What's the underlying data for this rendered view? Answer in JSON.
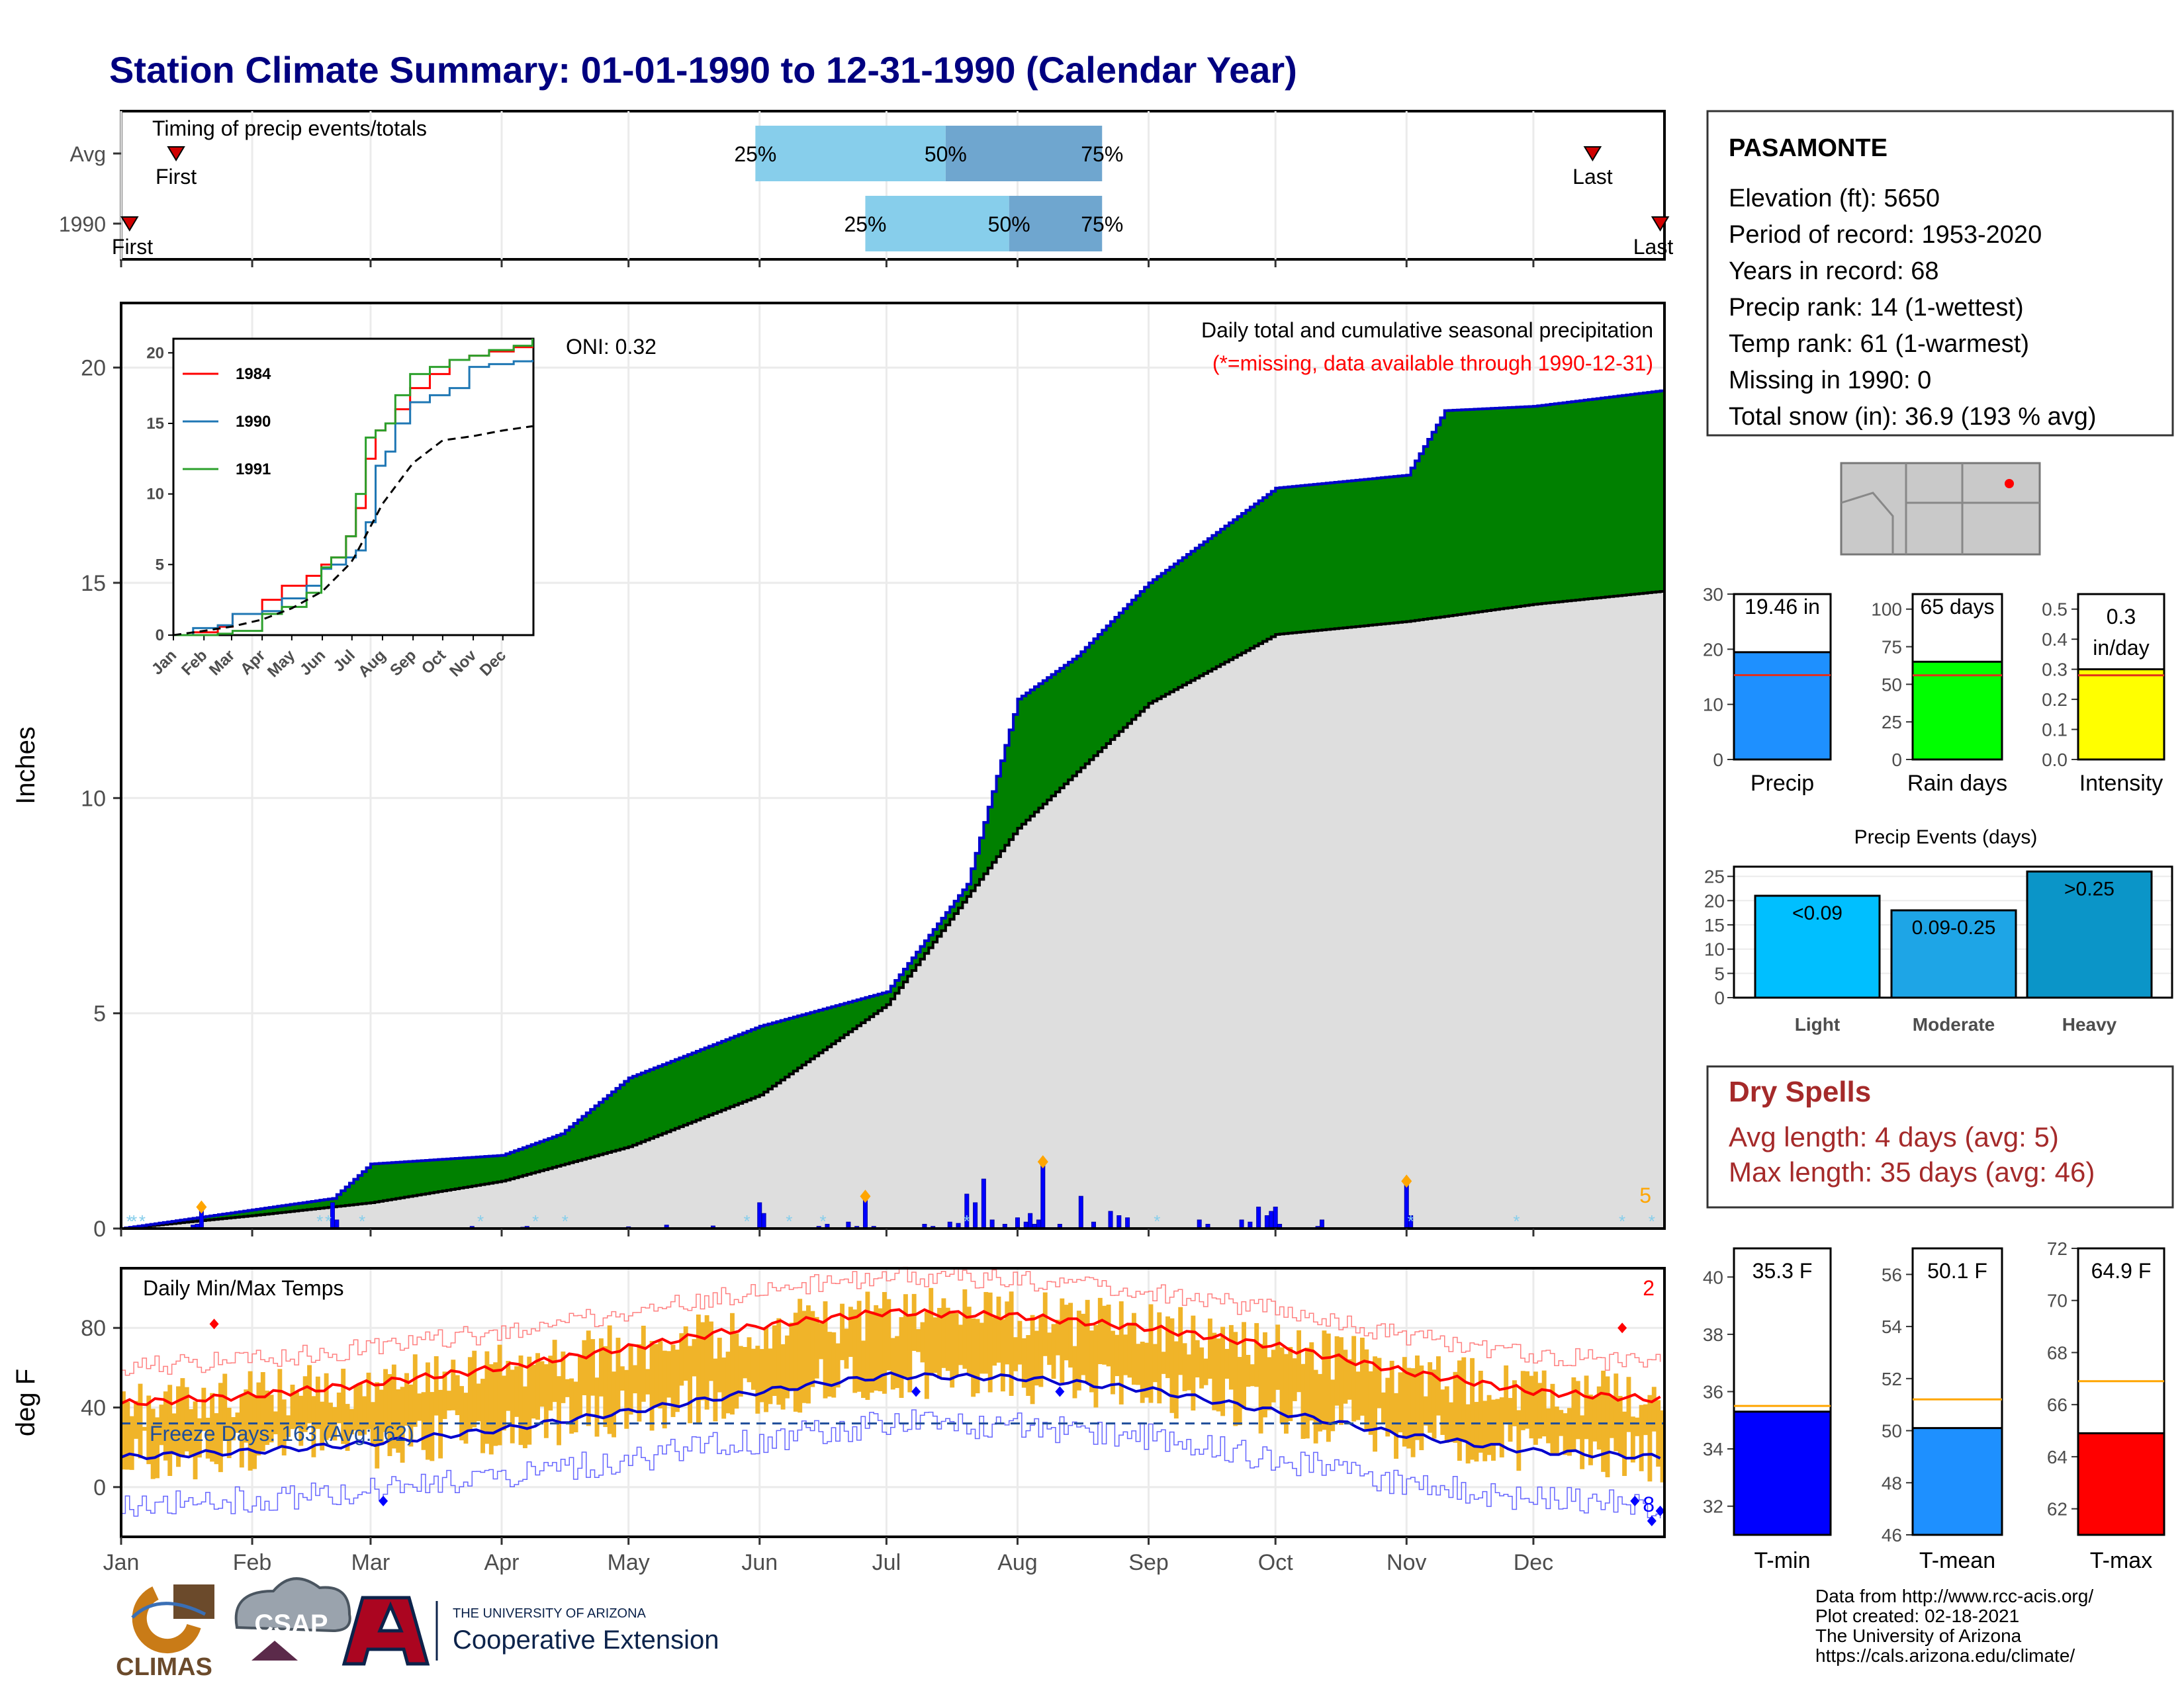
{
  "title": "Station Climate Summary: 01-01-1990 to 12-31-1990 (Calendar Year)",
  "months": [
    "Jan",
    "Feb",
    "Mar",
    "Apr",
    "May",
    "Jun",
    "Jul",
    "Aug",
    "Sep",
    "Oct",
    "Nov",
    "Dec"
  ],
  "timing": {
    "heading": "Timing of precip events/totals",
    "rows": [
      {
        "label": "Avg",
        "first_label": "First",
        "last_label": "Last",
        "first_day": 13,
        "last_day": 348,
        "p25_day": 150,
        "p50_day": 195,
        "p75_day": 232,
        "p25_label": "25%",
        "p50_label": "50%",
        "p75_label": "75%"
      },
      {
        "label": "1990",
        "first_label": "First",
        "last_label": "Last",
        "first_day": 2,
        "last_day": 364,
        "p25_day": 176,
        "p50_day": 210,
        "p75_day": 232,
        "p25_label": "25%",
        "p50_label": "50%",
        "p75_label": "75%"
      }
    ]
  },
  "precip_panel": {
    "y_axis_label": "Inches",
    "title": "Daily total and cumulative seasonal precipitation",
    "subtitle": "(*=missing, data available through 1990-12-31)",
    "oni": "ONI: 0.32",
    "corner_count": "5",
    "y_ticks": [
      "0",
      "5",
      "10",
      "15",
      "20"
    ]
  },
  "inset": {
    "legend": [
      "1984",
      "1990",
      "1991"
    ],
    "y_ticks": [
      "0",
      "5",
      "10",
      "15",
      "20"
    ],
    "x_ticks": [
      "Jan",
      "Feb",
      "Mar",
      "Apr",
      "May",
      "Jun",
      "Jul",
      "Aug",
      "Sep",
      "Oct",
      "Nov",
      "Dec"
    ]
  },
  "temp_panel": {
    "y_axis_label": "deg F",
    "title": "Daily Min/Max Temps",
    "freeze": "Freeze Days: 163 (Avg:162)",
    "count_high": "2",
    "count_low": "8",
    "y_ticks": [
      "0",
      "40",
      "80"
    ]
  },
  "station": {
    "name": "PASAMONTE",
    "lines": [
      "Elevation (ft): 5650",
      "Period of record: 1953-2020",
      "Years in record: 68",
      "Precip rank: 14 (1-wettest)",
      "Temp rank: 61 (1-warmest)",
      "Missing in 1990: 0",
      "Total snow (in): 36.9 (193 % avg)"
    ]
  },
  "mini_bars": [
    {
      "label": "Precip",
      "value_label": "19.46 in",
      "value": 19.46,
      "avg": 15.3,
      "ymax": 30,
      "ticks": [
        "0",
        "10",
        "20",
        "30"
      ],
      "color": "#1e90ff"
    },
    {
      "label": "Rain days",
      "value_label": "65 days",
      "value": 65,
      "avg": 56,
      "ymax": 110,
      "ticks": [
        "0",
        "25",
        "50",
        "75",
        "100"
      ],
      "color": "#00ff00"
    },
    {
      "label": "Intensity",
      "value_label": "0.3 in/day",
      "value": 0.3,
      "avg": 0.28,
      "ymax": 0.55,
      "ticks": [
        "0.0",
        "0.1",
        "0.2",
        "0.3",
        "0.4",
        "0.5"
      ],
      "color": "#ffff00"
    }
  ],
  "events": {
    "title": "Precip Events (days)",
    "ticks": [
      "0",
      "5",
      "10",
      "15",
      "20",
      "25"
    ],
    "bars": [
      {
        "label": "Light",
        "value": 21,
        "text": "<0.09",
        "color": "#00bfff"
      },
      {
        "label": "Moderate",
        "value": 18,
        "text": "0.09-0.25",
        "color": "#1ea5e6"
      },
      {
        "label": "Heavy",
        "value": 26,
        "text": ">0.25",
        "color": "#0b95c8"
      }
    ]
  },
  "dry_spells": {
    "title": "Dry Spells",
    "avg": "Avg length: 4 days (avg: 5)",
    "max": "Max length: 35 days (avg: 46)"
  },
  "temp_bars": [
    {
      "label": "T-min",
      "value_label": "35.3 F",
      "value": 35.3,
      "avg": 35.5,
      "ymin": 31,
      "ymax": 41,
      "ticks": [
        "32",
        "34",
        "36",
        "38",
        "40"
      ],
      "color": "#0000ff"
    },
    {
      "label": "T-mean",
      "value_label": "50.1 F",
      "value": 50.1,
      "avg": 51.2,
      "ymin": 46,
      "ymax": 57,
      "ticks": [
        "46",
        "48",
        "50",
        "52",
        "54",
        "56"
      ],
      "color": "#1e90ff"
    },
    {
      "label": "T-max",
      "value_label": "64.9 F",
      "value": 64.9,
      "avg": 66.9,
      "ymin": 61,
      "ymax": 72,
      "ticks": [
        "62",
        "64",
        "66",
        "68",
        "70",
        "72"
      ],
      "color": "#ff0000"
    }
  ],
  "footer": {
    "lines": [
      "Data from http://www.rcc-acis.org/",
      "Plot created: 02-18-2021",
      "The University of Arizona",
      "https://cals.arizona.edu/climate/"
    ],
    "logo1": "CLIMAS",
    "logo2": "CSAP",
    "logo3_top": "THE UNIVERSITY OF ARIZONA",
    "logo3_bottom": "Cooperative Extension"
  },
  "chart_data": [
    {
      "type": "area",
      "title": "Daily total and cumulative seasonal precipitation",
      "ylabel": "Inches",
      "ylim": [
        0,
        21.5
      ],
      "series": [
        {
          "name": "1990",
          "x": [
            "01-01",
            "02-20",
            "03-01",
            "04-01",
            "04-15",
            "05-01",
            "06-01",
            "07-01",
            "07-20",
            "08-01",
            "08-15",
            "09-01",
            "10-01",
            "11-01",
            "11-10",
            "12-01",
            "12-31"
          ],
          "y": [
            0,
            0.7,
            1.5,
            1.7,
            2.2,
            3.5,
            4.7,
            5.5,
            8.0,
            12.3,
            13.3,
            15.0,
            17.2,
            17.5,
            19.0,
            19.1,
            19.46
          ]
        },
        {
          "name": "avg",
          "x": [
            "01-01",
            "02-01",
            "03-01",
            "04-01",
            "05-01",
            "06-01",
            "07-01",
            "08-01",
            "09-01",
            "10-01",
            "11-01",
            "12-01",
            "12-31"
          ],
          "y": [
            0,
            0.3,
            0.6,
            1.1,
            1.9,
            3.1,
            5.2,
            9.3,
            12.2,
            13.8,
            14.1,
            14.5,
            14.8
          ]
        }
      ]
    },
    {
      "type": "line",
      "title": "Daily Min/Max Temps",
      "ylabel": "deg F",
      "ylim": [
        -25,
        110
      ],
      "series": [
        {
          "name": "avg max",
          "x": [
            "01-01",
            "02-01",
            "03-01",
            "04-01",
            "05-01",
            "06-01",
            "07-01",
            "08-01",
            "09-01",
            "10-01",
            "11-01",
            "12-01",
            "12-31"
          ],
          "y": [
            42,
            46,
            52,
            60,
            70,
            81,
            88,
            86,
            80,
            71,
            58,
            48,
            44
          ]
        },
        {
          "name": "avg min",
          "x": [
            "01-01",
            "02-01",
            "03-01",
            "04-01",
            "05-01",
            "06-01",
            "07-01",
            "08-01",
            "09-01",
            "10-01",
            "11-01",
            "12-01",
            "12-31"
          ],
          "y": [
            15,
            18,
            22,
            29,
            38,
            48,
            56,
            55,
            49,
            38,
            26,
            18,
            15
          ]
        }
      ]
    }
  ]
}
